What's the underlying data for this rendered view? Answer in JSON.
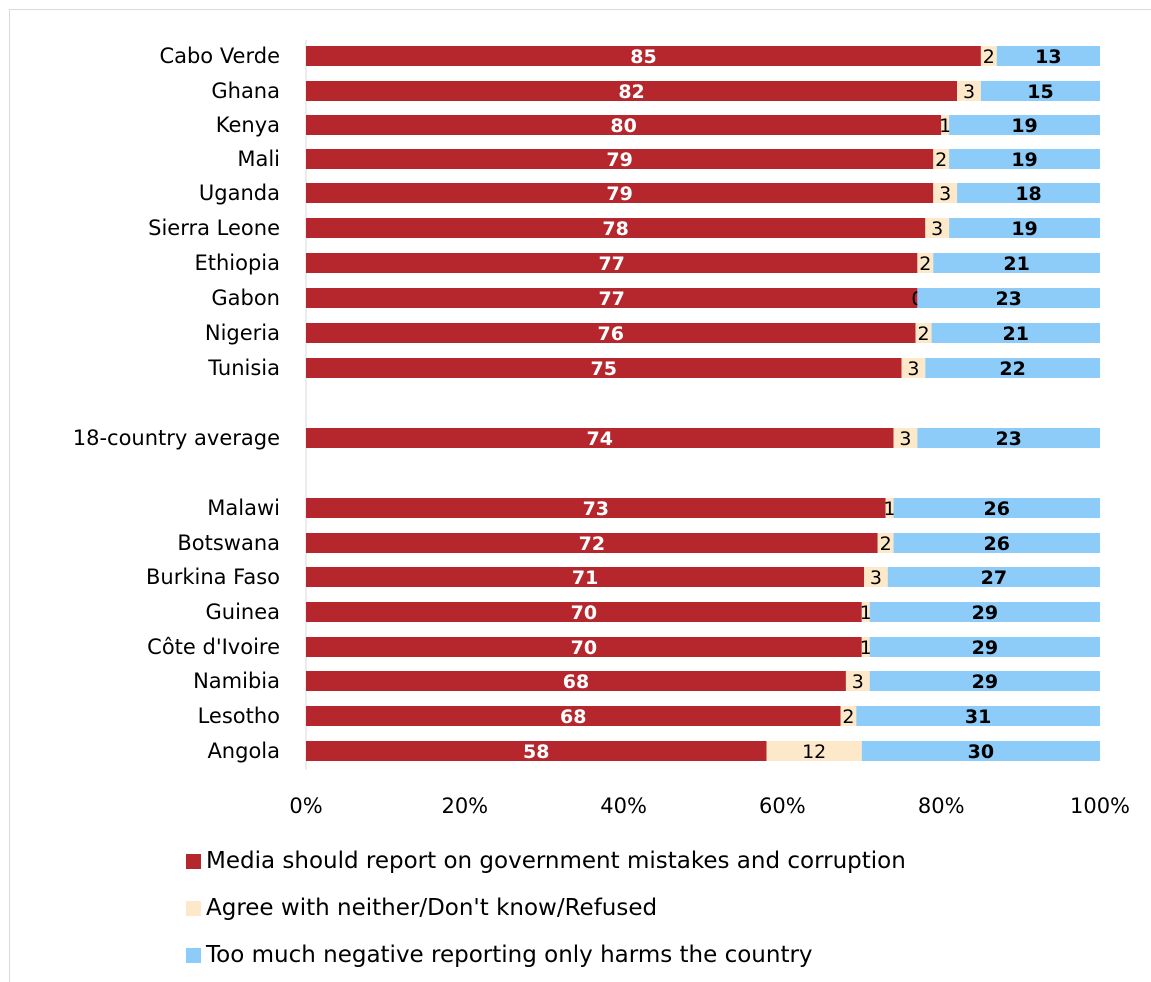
{
  "chart_data": {
    "type": "bar",
    "orientation": "horizontal",
    "stacked": true,
    "categories": [
      "Cabo Verde",
      "Ghana",
      "Kenya",
      "Mali",
      "Uganda",
      "Sierra Leone",
      "Ethiopia",
      "Gabon",
      "Nigeria",
      "Tunisia",
      "18-country average",
      "Malawi",
      "Botswana",
      "Burkina Faso",
      "Guinea",
      "Côte d'Ivoire",
      "Namibia",
      "Lesotho",
      "Angola"
    ],
    "series": [
      {
        "name": "Media should report on government mistakes and corruption",
        "color": "#b5272d",
        "values": [
          85,
          82,
          80,
          79,
          79,
          78,
          77,
          77,
          76,
          75,
          74,
          73,
          72,
          71,
          70,
          70,
          68,
          68,
          58
        ]
      },
      {
        "name": "Agree with neither/Don't know/Refused",
        "color": "#fde9c9",
        "values": [
          2,
          3,
          1,
          2,
          3,
          3,
          2,
          0,
          2,
          3,
          3,
          1,
          2,
          3,
          1,
          1,
          3,
          2,
          12
        ]
      },
      {
        "name": "Too much negative reporting only harms the country",
        "color": "#8dcbf9",
        "values": [
          13,
          15,
          19,
          19,
          18,
          19,
          21,
          23,
          21,
          22,
          23,
          26,
          26,
          27,
          29,
          29,
          29,
          31,
          30
        ]
      }
    ],
    "xlim": [
      0,
      100
    ],
    "xticks": [
      "0%",
      "20%",
      "40%",
      "60%",
      "80%",
      "100%"
    ],
    "legend_position": "bottom",
    "grid": false
  }
}
